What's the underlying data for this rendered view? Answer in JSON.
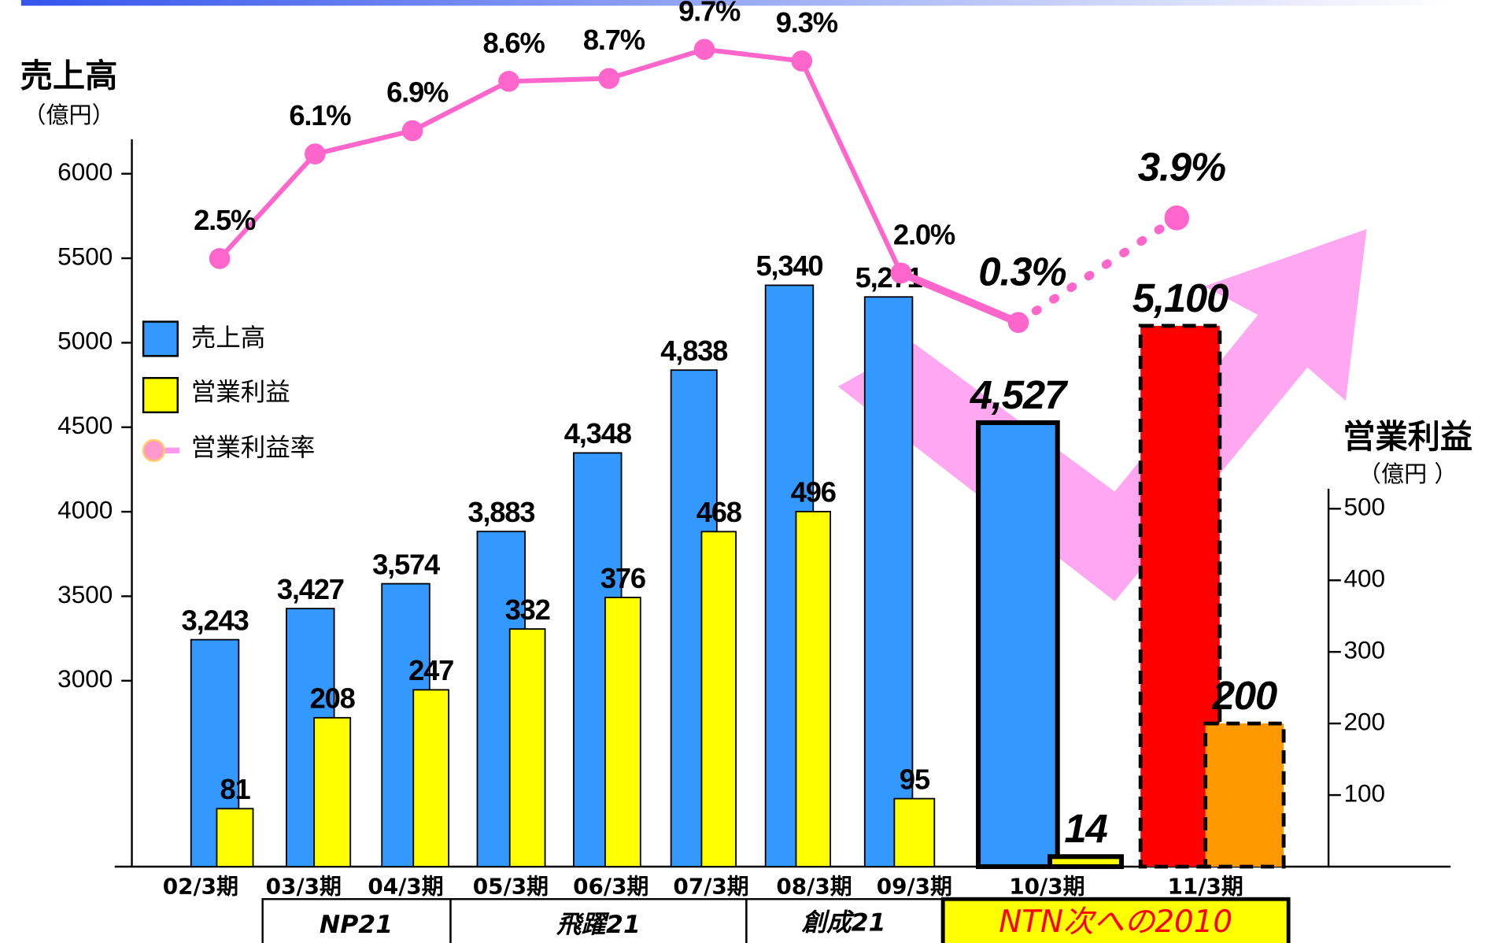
{
  "chart_data": {
    "type": "bar",
    "y_title": "売上高",
    "y_unit": "（億円）",
    "y2_title": "営業利益",
    "y2_unit": "（億円 ）",
    "categories": [
      "02/3期",
      "03/3期",
      "04/3期",
      "05/3期",
      "06/3期",
      "07/3期",
      "08/3期",
      "09/3期",
      "10/3期",
      "11/3期"
    ],
    "ylim": [
      1900,
      6200
    ],
    "yticks": [
      3000,
      3500,
      4000,
      4500,
      5000,
      5500,
      6000
    ],
    "y2lim": [
      0,
      528
    ],
    "y2ticks": [
      100,
      200,
      300,
      400,
      500
    ],
    "y3lim": [
      0,
      11.4
    ],
    "legend": "left",
    "series": [
      {
        "name": "売上高",
        "type": "bar",
        "color": "#3399ff",
        "colors": [
          "#3399ff",
          "#3399ff",
          "#3399ff",
          "#3399ff",
          "#3399ff",
          "#3399ff",
          "#3399ff",
          "#3399ff",
          "#3399ff",
          "#ff0000"
        ],
        "values": [
          3243,
          3427,
          3574,
          3883,
          4348,
          4838,
          5340,
          5271,
          4527,
          5100
        ],
        "value_labels": [
          "3,243",
          "3,427",
          "3,574",
          "3,883",
          "4,348",
          "4,838",
          "5,340",
          "5,271",
          "4,527",
          "5,100"
        ]
      },
      {
        "name": "営業利益",
        "type": "bar",
        "axis": "y2",
        "color": "#ffff00",
        "colors": [
          "#ffff00",
          "#ffff00",
          "#ffff00",
          "#ffff00",
          "#ffff00",
          "#ffff00",
          "#ffff00",
          "#ffff00",
          "#ffff00",
          "#ff9900"
        ],
        "values": [
          81,
          208,
          247,
          332,
          376,
          468,
          496,
          95,
          14,
          200
        ]
      },
      {
        "name": "営業利益率",
        "type": "line",
        "axis": "y3",
        "color": "#ff66cc",
        "values": [
          2.5,
          6.1,
          6.9,
          8.6,
          8.7,
          9.7,
          9.3,
          2.0,
          0.3,
          3.9
        ],
        "value_labels": [
          "2.5%",
          "6.1%",
          "6.9%",
          "8.6%",
          "8.7%",
          "9.7%",
          "9.3%",
          "2.0%",
          "0.3%",
          "3.9%"
        ]
      }
    ],
    "periods": [
      "NP21",
      "飛躍21",
      "創成21",
      "NTN次への2010"
    ]
  }
}
